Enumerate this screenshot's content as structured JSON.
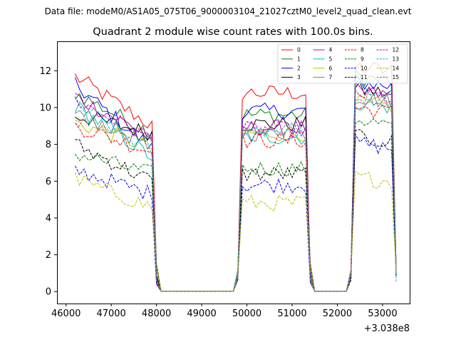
{
  "figure": {
    "suptitle": "Data file: modeM0/AS1A05_075T06_9000003104_21027cztM0_level2_quad_clean.evt"
  },
  "chart_data": {
    "type": "line",
    "title": "Quadrant 2 module wise count rates with 100.0s bins.",
    "xlabel": "",
    "ylabel": "",
    "x_offset_label": "+3.038e8",
    "xlim": [
      45800,
      53600
    ],
    "ylim": [
      -0.65,
      13.6
    ],
    "xticks": [
      46000,
      47000,
      48000,
      49000,
      50000,
      51000,
      52000,
      53000
    ],
    "xtick_labels": [
      "46000",
      "47000",
      "48000",
      "49000",
      "50000",
      "51000",
      "52000",
      "53000"
    ],
    "yticks": [
      0,
      2,
      4,
      6,
      8,
      10,
      12
    ],
    "ytick_labels": [
      "0",
      "2",
      "4",
      "6",
      "8",
      "10",
      "12"
    ],
    "legend_position": "upper-right",
    "legend_columns": 4,
    "segments": [
      {
        "x_start": 46200,
        "x_end": 47900,
        "n_bins": 18
      },
      {
        "x_start": 49900,
        "x_end": 51300,
        "n_bins": 15
      },
      {
        "x_start": 52400,
        "x_end": 53200,
        "n_bins": 9
      }
    ],
    "series": [
      {
        "name": "0",
        "color": "#ff0000",
        "dash": "solid",
        "levels": [
          11.7,
          9.0,
          10.8,
          12.2
        ]
      },
      {
        "name": "1",
        "color": "#008000",
        "dash": "solid",
        "levels": [
          10.8,
          8.6,
          9.6,
          11.7
        ]
      },
      {
        "name": "2",
        "color": "#0000ff",
        "dash": "solid",
        "levels": [
          11.2,
          7.8,
          9.8,
          11.4
        ]
      },
      {
        "name": "3",
        "color": "#000000",
        "dash": "solid",
        "levels": [
          9.6,
          8.6,
          9.1,
          11.0
        ]
      },
      {
        "name": "4",
        "color": "#bf00bf",
        "dash": "solid",
        "levels": [
          10.6,
          8.4,
          8.9,
          10.9
        ]
      },
      {
        "name": "5",
        "color": "#00bfbf",
        "dash": "solid",
        "levels": [
          10.1,
          7.3,
          8.4,
          10.3
        ]
      },
      {
        "name": "6",
        "color": "#bfbf00",
        "dash": "solid",
        "levels": [
          9.2,
          7.8,
          8.6,
          10.3
        ]
      },
      {
        "name": "7",
        "color": "#808080",
        "dash": "solid",
        "levels": [
          9.8,
          7.9,
          8.6,
          10.6
        ]
      },
      {
        "name": "8",
        "color": "#ff0000",
        "dash": "dashed",
        "levels": [
          9.0,
          7.6,
          8.2,
          10.0
        ]
      },
      {
        "name": "9",
        "color": "#008000",
        "dash": "dashed",
        "levels": [
          7.5,
          6.4,
          6.7,
          9.4
        ]
      },
      {
        "name": "10",
        "color": "#0000ff",
        "dash": "dashed",
        "levels": [
          6.6,
          5.3,
          5.8,
          8.1
        ]
      },
      {
        "name": "11",
        "color": "#000000",
        "dash": "dashed",
        "levels": [
          8.0,
          6.0,
          6.4,
          8.4
        ]
      },
      {
        "name": "12",
        "color": "#bf00bf",
        "dash": "dashed",
        "levels": [
          10.4,
          8.3,
          8.8,
          10.8
        ]
      },
      {
        "name": "13",
        "color": "#00bfbf",
        "dash": "dashed",
        "levels": [
          10.2,
          7.6,
          8.8,
          11.0
        ]
      },
      {
        "name": "14",
        "color": "#bfbf00",
        "dash": "dashed",
        "levels": [
          6.1,
          4.6,
          4.8,
          6.2
        ]
      },
      {
        "name": "15",
        "color": "#808080",
        "dash": "dashed",
        "levels": [
          9.4,
          8.3,
          8.8,
          10.7
        ]
      }
    ]
  }
}
